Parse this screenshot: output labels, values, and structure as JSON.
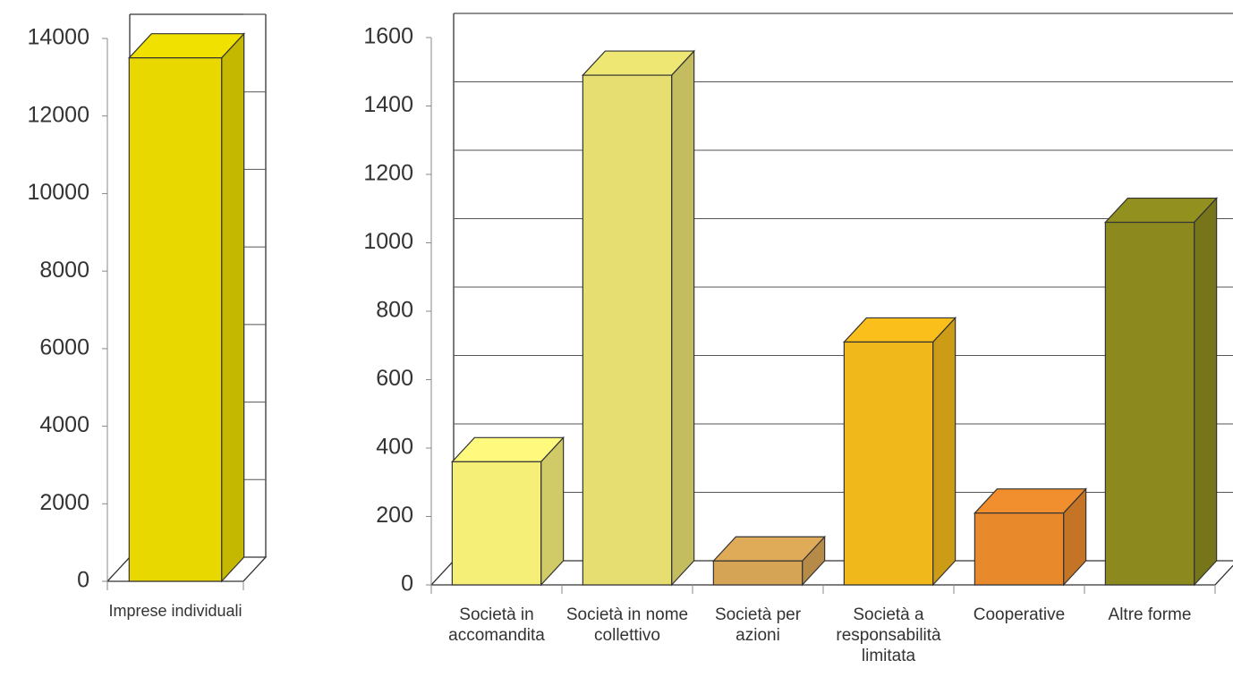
{
  "chart_data": [
    {
      "type": "bar3d",
      "categories": [
        "Imprese individuali"
      ],
      "values": [
        13500
      ],
      "colors": [
        "#e8d800"
      ],
      "ylim": [
        0,
        14000
      ],
      "yticks": [
        0,
        2000,
        4000,
        6000,
        8000,
        10000,
        12000,
        14000
      ],
      "grid": false
    },
    {
      "type": "bar3d",
      "categories": [
        "Società in accomandita",
        "Società in nome collettivo",
        "Società per azioni",
        "Società a responsabilità limitata",
        "Cooperative",
        "Altre forme"
      ],
      "values": [
        360,
        1490,
        70,
        710,
        210,
        1060
      ],
      "colors": [
        "#f5ef78",
        "#e6de70",
        "#d6a455",
        "#f0b81a",
        "#e8892c",
        "#8c8a1e"
      ],
      "ylim": [
        0,
        1600
      ],
      "yticks": [
        0,
        200,
        400,
        600,
        800,
        1000,
        1200,
        1400,
        1600
      ],
      "grid": true
    }
  ]
}
